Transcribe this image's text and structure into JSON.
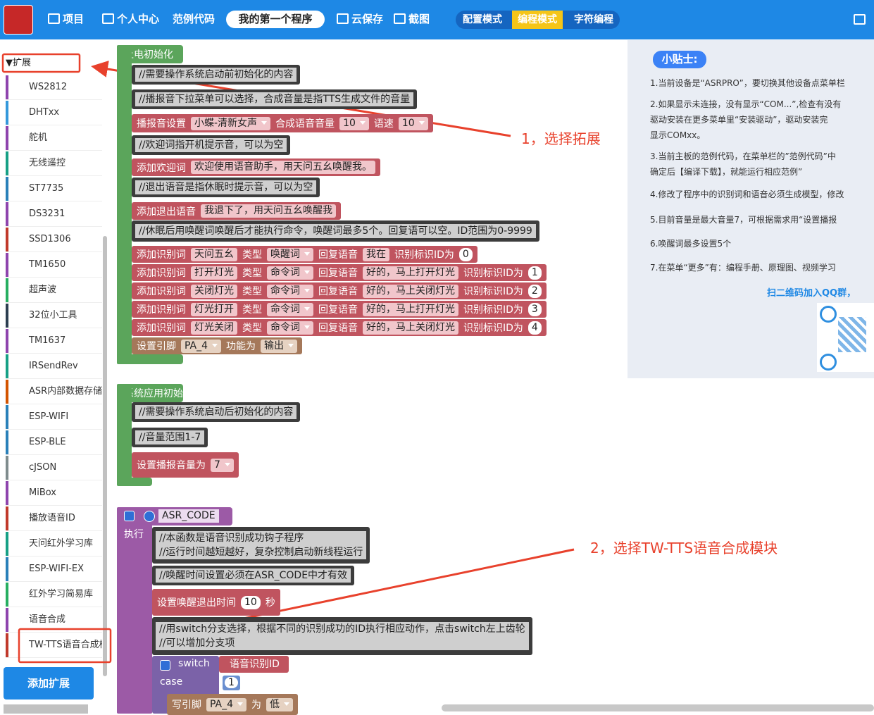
{
  "header": {
    "nav": [
      "项目",
      "个人中心",
      "范例代码"
    ],
    "program_name": "我的第一个程序",
    "actions": [
      "云保存",
      "截图"
    ],
    "modes": [
      "配置模式",
      "编程模式",
      "字符编程"
    ]
  },
  "sidebar": {
    "section": "▼扩展",
    "items": [
      "WS2812",
      "DHTxx",
      "舵机",
      "无线遥控",
      "ST7735",
      "DS3231",
      "SSD1306",
      "TM1650",
      "超声波",
      "32位小工具",
      "TM1637",
      "IRSendRev",
      "ASR内部数据存储",
      "ESP-WIFI",
      "ESP-BLE",
      "cJSON",
      "MiBox",
      "播放语音ID",
      "天问红外学习库",
      "ESP-WIFI-EX",
      "红外学习简易库",
      "语音合成",
      "TW-TTS语音合成模块"
    ],
    "button": "添加扩展"
  },
  "workspace": {
    "power_on": {
      "title": "上电初始化",
      "rows": [
        {
          "comment": [
            "//需要操作系统启动前初始化的内容"
          ]
        },
        {
          "comment": [
            "//播报音下拉菜单可以选择，合成音量是指TTS生成文件的音量"
          ]
        },
        {
          "parts": [
            "播报音设置",
            "小蝶-清新女声",
            "合成语音音量",
            "10",
            "语速",
            "10"
          ]
        },
        {
          "comment": [
            "//欢迎词指开机提示音，可以为空"
          ]
        },
        {
          "parts": [
            "添加欢迎词",
            "欢迎使用语音助手，用天问五幺唤醒我。"
          ]
        },
        {
          "comment": [
            "//退出语音是指休眠时提示音，可以为空"
          ]
        },
        {
          "parts": [
            "添加退出语音",
            "我退下了，用天问五幺唤醒我"
          ]
        },
        {
          "comment": [
            "//休眠后用唤醒词唤醒后才能执行命令，唤醒词最多5个。回复语可以空。ID范围为0-9999"
          ]
        },
        {
          "parts": [
            "添加识别词",
            "天问五幺",
            "类型",
            "唤醒词",
            "回复语音",
            "我在",
            "识别标识ID为",
            "0"
          ]
        },
        {
          "parts": [
            "添加识别词",
            "打开灯光",
            "类型",
            "命令词",
            "回复语音",
            "好的，马上打开灯光",
            "识别标识ID为",
            "1"
          ]
        },
        {
          "parts": [
            "添加识别词",
            "关闭灯光",
            "类型",
            "命令词",
            "回复语音",
            "好的，马上关闭灯光",
            "识别标识ID为",
            "2"
          ]
        },
        {
          "parts": [
            "添加识别词",
            "灯光打开",
            "类型",
            "命令词",
            "回复语音",
            "好的，马上打开灯光",
            "识别标识ID为",
            "3"
          ]
        },
        {
          "parts": [
            "添加识别词",
            "灯光关闭",
            "类型",
            "命令词",
            "回复语音",
            "好的，马上关闭灯光",
            "识别标识ID为",
            "4"
          ]
        },
        {
          "parts": [
            "设置引脚",
            "PA_4",
            "功能为",
            "输出"
          ]
        }
      ]
    },
    "system": {
      "title": "系统应用初始化",
      "rows": [
        {
          "comment": [
            "//需要操作系统启动后初始化的内容"
          ]
        },
        {
          "comment": [
            "//音量范围1-7"
          ]
        },
        {
          "parts": [
            "设置播报音量为",
            "7"
          ]
        }
      ]
    },
    "asr_code": {
      "name": "ASR_CODE",
      "execute": "执行",
      "rows": [
        {
          "comment": [
            "//本函数是语音识别成功钩子程序",
            "//运行时间越短越好，复杂控制启动新线程运行"
          ]
        },
        {
          "comment": [
            "//唤醒时间设置必须在ASR_CODE中才有效"
          ]
        },
        {
          "parts": [
            "设置唤醒退出时间",
            "10",
            "秒"
          ]
        },
        {
          "comment": [
            "//用switch分支选择，根据不同的识别成功的ID执行相应动作，点击switch左上齿轮",
            "//可以增加分支项"
          ]
        }
      ],
      "switch": {
        "label": "switch",
        "value": "语音识别ID",
        "case": "case",
        "case_value": "1",
        "body": [
          "写引脚",
          "PA_4",
          "为",
          "低"
        ]
      }
    }
  },
  "tips": {
    "title": "小贴士:",
    "lines": [
      "1.当前设备是“ASRPRO”，要切换其他设备点菜单栏",
      "2.如果显示未连接，没有显示“COM...”,检查有没有",
      "驱动安装在更多菜单里“安装驱动”，驱动安装完",
      "显示COMxx。",
      "3.当前主板的范例代码，在菜单栏的”范例代码”中",
      "确定后【编译下载】，就能运行相应范例”",
      "4.修改了程序中的识别词和语音必须生成模型，修改",
      "5.目前音量是最大音量7，可根据需求用“设置播报",
      "6.唤醒词最多设置5个",
      "7.在菜单“更多”有：编程手册、原理图、视频学习"
    ],
    "qq": "扫二维码加入QQ群，"
  },
  "annotations": [
    "1，选择拓展",
    "2，选择TW-TTS语音合成模块"
  ]
}
